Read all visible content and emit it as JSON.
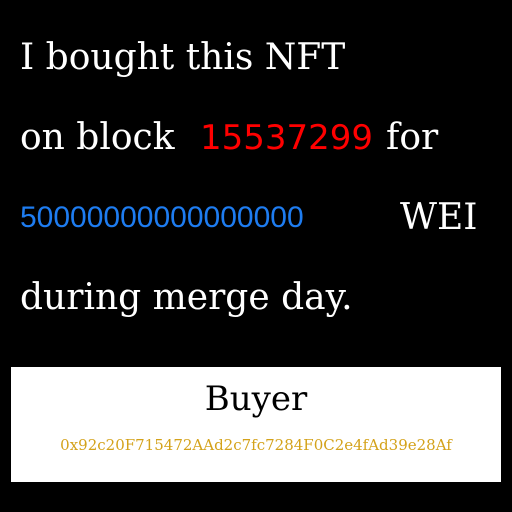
{
  "message": {
    "line1": "I bought this NFT",
    "line2_prefix": "on block",
    "block_number": "15537299",
    "line2_suffix": "for",
    "amount": "50000000000000000",
    "unit": "WEI",
    "line4": "during merge day."
  },
  "buyer": {
    "title": "Buyer",
    "address": "0x92c20F715472AAd2c7fc7284F0C2e4fAd39e28Af"
  },
  "colors": {
    "background": "#000000",
    "text": "#ffffff",
    "block_number": "#ff0000",
    "amount": "#1e7cf0",
    "address": "#d4a21a",
    "buyer_box": "#ffffff"
  }
}
